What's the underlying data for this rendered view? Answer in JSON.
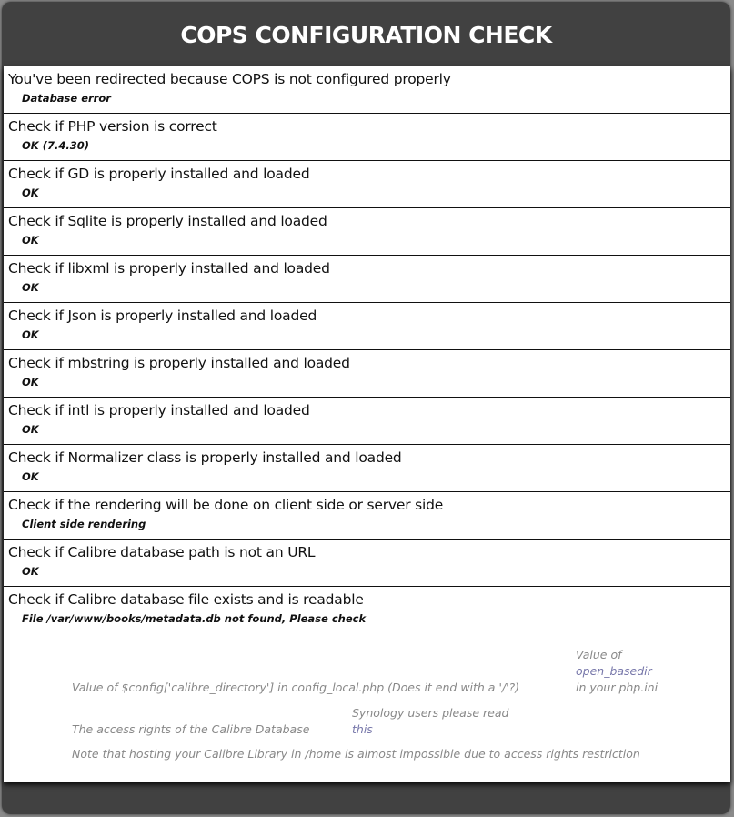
{
  "header": {
    "title": "COPS CONFIGURATION CHECK"
  },
  "checks": [
    {
      "title": "You've been redirected because COPS is not configured properly",
      "result": "Database error"
    },
    {
      "title": "Check if PHP version is correct",
      "result": "OK (7.4.30)"
    },
    {
      "title": "Check if GD is properly installed and loaded",
      "result": "OK"
    },
    {
      "title": "Check if Sqlite is properly installed and loaded",
      "result": "OK"
    },
    {
      "title": "Check if libxml is properly installed and loaded",
      "result": "OK"
    },
    {
      "title": "Check if Json is properly installed and loaded",
      "result": "OK"
    },
    {
      "title": "Check if mbstring is properly installed and loaded",
      "result": "OK"
    },
    {
      "title": "Check if intl is properly installed and loaded",
      "result": "OK"
    },
    {
      "title": "Check if Normalizer class is properly installed and loaded",
      "result": "OK"
    },
    {
      "title": "Check if the rendering will be done on client side or server side",
      "result": "Client side rendering"
    },
    {
      "title": "Check if Calibre database path is not an URL",
      "result": "OK"
    },
    {
      "title": "Check if Calibre database file exists and is readable",
      "result": "File /var/www/books/metadata.db not found, Please check"
    }
  ],
  "hints": {
    "calibre_dir": "Value of $config['calibre_directory'] in config_local.php (Does it end with a '/'?)",
    "basedir_pre": "Value of",
    "basedir_link": "open_basedir",
    "basedir_post": "in your php.ini",
    "access_rights": "The access rights of the Calibre Database",
    "synology_pre": "Synology users please read",
    "synology_link": "this",
    "home_note": "Note that hosting your Calibre Library in /home is almost impossible due to access rights restriction"
  },
  "colors": {
    "header_bg": "#414141",
    "link": "#7777aa",
    "hint_text": "#888888"
  }
}
